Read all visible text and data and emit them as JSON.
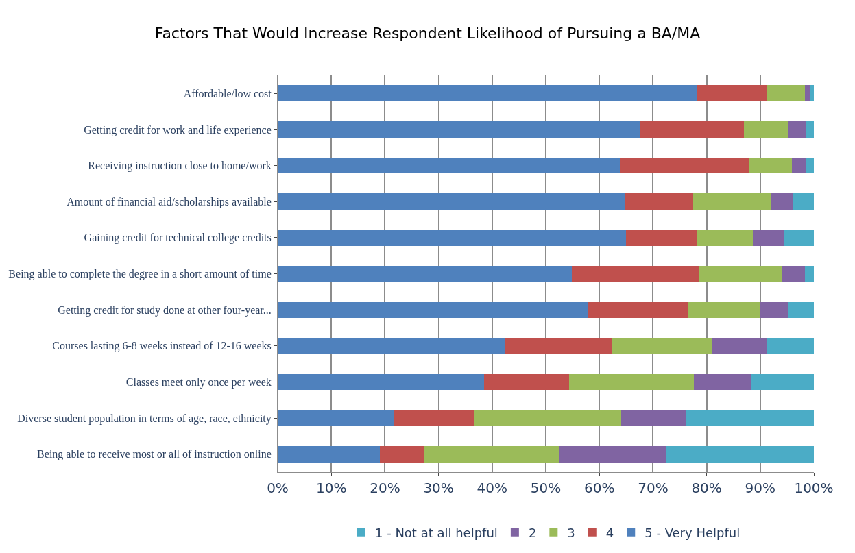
{
  "chart_data": {
    "type": "bar",
    "orientation": "horizontal",
    "stacked": true,
    "title": "Factors That Would Increase Respondent Likelihood of Pursuing a BA/MA",
    "categories": [
      "Affordable/low cost",
      "Getting credit for work and life experience",
      "Receiving instruction close to home/work",
      "Amount of financial aid/scholarships available",
      "Gaining credit for technical college credits",
      "Being able to complete the degree in a short amount of time",
      "Getting credit for study done at other four-year...",
      "Courses lasting 6-8 weeks instead of 12-16 weeks",
      "Classes meet only once per week",
      "Diverse student population in terms of age, race, ethnicity",
      "Being able to receive most or all of instruction online"
    ],
    "series": [
      {
        "name": "5 - Very Helpful",
        "color": "#4f81bd",
        "values": [
          78.3,
          67.6,
          63.8,
          64.8,
          65.0,
          54.9,
          57.8,
          42.5,
          38.5,
          21.7,
          19.1
        ]
      },
      {
        "name": "4",
        "color": "#c0504d",
        "values": [
          13.0,
          19.4,
          24.1,
          12.6,
          13.3,
          23.6,
          18.8,
          19.8,
          15.8,
          15.0,
          8.2
        ]
      },
      {
        "name": "3",
        "color": "#9bbb59",
        "values": [
          7.0,
          8.1,
          8.0,
          14.6,
          10.3,
          15.5,
          13.4,
          18.6,
          23.3,
          27.2,
          25.3
        ]
      },
      {
        "name": "2",
        "color": "#8064a2",
        "values": [
          1.0,
          3.5,
          2.7,
          4.2,
          5.8,
          4.4,
          5.2,
          10.4,
          10.7,
          12.3,
          19.8
        ]
      },
      {
        "name": "1 - Not at all helpful",
        "color": "#4bacc6",
        "values": [
          0.7,
          1.4,
          1.4,
          3.8,
          5.6,
          1.6,
          4.8,
          8.7,
          11.7,
          23.8,
          27.6
        ]
      }
    ],
    "xlim": [
      0,
      100
    ],
    "xticks": [
      {
        "value": 0,
        "label": "0%"
      },
      {
        "value": 10,
        "label": "10%"
      },
      {
        "value": 20,
        "label": "20%"
      },
      {
        "value": 30,
        "label": "30%"
      },
      {
        "value": 40,
        "label": "40%"
      },
      {
        "value": 50,
        "label": "50%"
      },
      {
        "value": 60,
        "label": "60%"
      },
      {
        "value": 70,
        "label": "70%"
      },
      {
        "value": 80,
        "label": "80%"
      },
      {
        "value": 90,
        "label": "90%"
      },
      {
        "value": 100,
        "label": "100%"
      }
    ],
    "grid": "x",
    "legend": "bottom"
  }
}
